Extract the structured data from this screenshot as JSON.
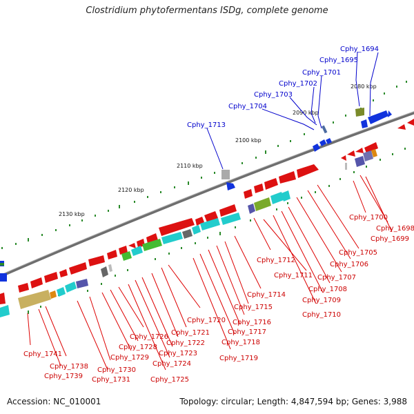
{
  "title": "Clostridium phytofermentans ISDg, complete genome",
  "footer": {
    "accession": "Accession: NC_010001",
    "summary": "Topology: circular; Length: 4,847,594 bp; Genes: 3,988"
  },
  "kbp_labels": [
    "2080 kbp",
    "2090 kbp",
    "2100 kbp",
    "2110 kbp",
    "2120 kbp",
    "2130 kbp"
  ],
  "top_genes": [
    "Cphy_1694",
    "Cphy_1695",
    "Cphy_1701",
    "Cphy_1702",
    "Cphy_1703",
    "Cphy_1704",
    "Cphy_1713"
  ],
  "bottom_genes": [
    "Cphy_1700",
    "Cphy_1698",
    "Cphy_1699",
    "Cphy_1705",
    "Cphy_1706",
    "Cphy_1707",
    "Cphy_1708",
    "Cphy_1709",
    "Cphy_1710",
    "Cphy_1711",
    "Cphy_1712",
    "Cphy_1714",
    "Cphy_1715",
    "Cphy_1716",
    "Cphy_1717",
    "Cphy_1718",
    "Cphy_1719",
    "Cphy_1720",
    "Cphy_1721",
    "Cphy_1722",
    "Cphy_1723",
    "Cphy_1724",
    "Cphy_1725",
    "Cphy_1726",
    "Cphy_1728",
    "Cphy_1729",
    "Cphy_1730",
    "Cphy_1731",
    "Cphy_1738",
    "Cphy_1739",
    "Cphy_1741"
  ],
  "colors": {
    "backbone": "#7a7a7a",
    "forward_gene": "#0000dd",
    "reverse_gene": "#dd0000",
    "tick": "#2a8a2a",
    "label_forward": "#0000cc",
    "label_reverse": "#cc0000"
  }
}
